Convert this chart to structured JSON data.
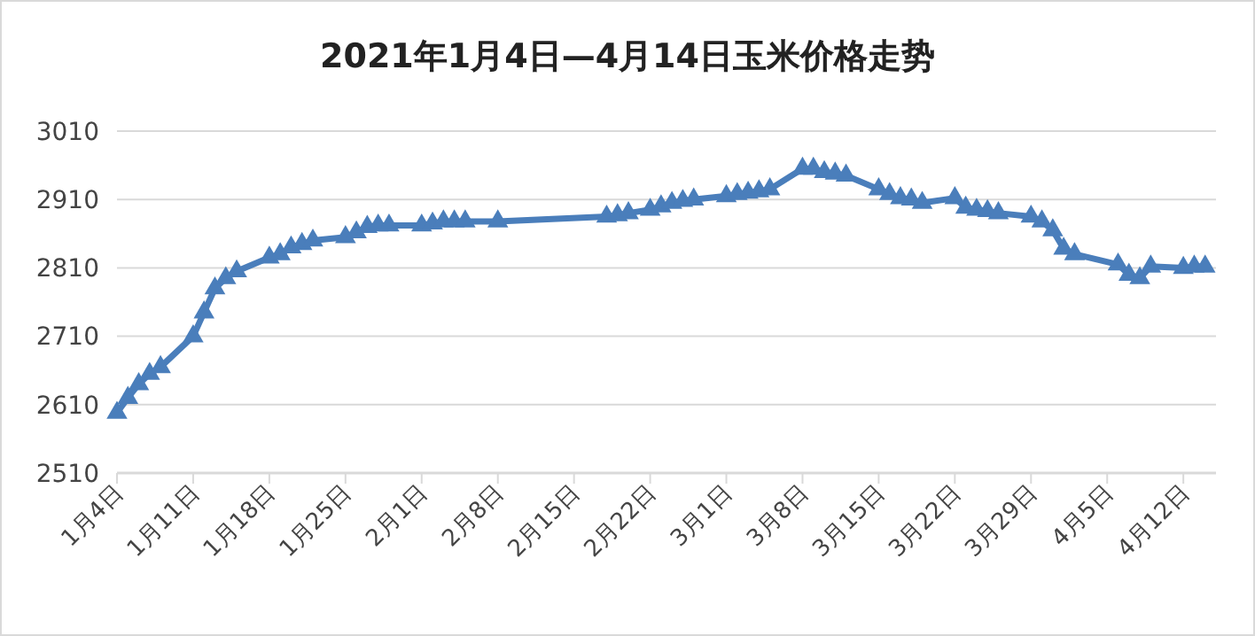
{
  "chart_data": {
    "type": "line",
    "title": "2021年1月4日—4月14日玉米价格走势",
    "marker": "triangle",
    "grid": "y",
    "line_style": "solid",
    "xlim": [
      "2021-01-04",
      "2021-04-15"
    ],
    "xticks": [
      {
        "value": "2021-01-04",
        "label": "1月4日"
      },
      {
        "value": "2021-01-11",
        "label": "1月11日"
      },
      {
        "value": "2021-01-18",
        "label": "1月18日"
      },
      {
        "value": "2021-01-25",
        "label": "1月25日"
      },
      {
        "value": "2021-02-01",
        "label": "2月1日"
      },
      {
        "value": "2021-02-08",
        "label": "2月8日"
      },
      {
        "value": "2021-02-15",
        "label": "2月15日"
      },
      {
        "value": "2021-02-22",
        "label": "2月22日"
      },
      {
        "value": "2021-03-01",
        "label": "3月1日"
      },
      {
        "value": "2021-03-08",
        "label": "3月8日"
      },
      {
        "value": "2021-03-15",
        "label": "3月15日"
      },
      {
        "value": "2021-03-22",
        "label": "3月22日"
      },
      {
        "value": "2021-03-29",
        "label": "3月29日"
      },
      {
        "value": "2021-04-05",
        "label": "4月5日"
      },
      {
        "value": "2021-04-12",
        "label": "4月12日"
      }
    ],
    "ylim": [
      2510,
      3010
    ],
    "yticks": [
      2510,
      2610,
      2710,
      2810,
      2910,
      3010
    ],
    "x": [
      "2021-01-04",
      "2021-01-05",
      "2021-01-06",
      "2021-01-07",
      "2021-01-08",
      "2021-01-11",
      "2021-01-12",
      "2021-01-13",
      "2021-01-14",
      "2021-01-15",
      "2021-01-18",
      "2021-01-19",
      "2021-01-20",
      "2021-01-21",
      "2021-01-22",
      "2021-01-25",
      "2021-01-26",
      "2021-01-27",
      "2021-01-28",
      "2021-01-29",
      "2021-02-01",
      "2021-02-02",
      "2021-02-03",
      "2021-02-04",
      "2021-02-05",
      "2021-02-08",
      "2021-02-18",
      "2021-02-19",
      "2021-02-20",
      "2021-02-22",
      "2021-02-23",
      "2021-02-24",
      "2021-02-25",
      "2021-02-26",
      "2021-03-01",
      "2021-03-02",
      "2021-03-03",
      "2021-03-04",
      "2021-03-05",
      "2021-03-08",
      "2021-03-09",
      "2021-03-10",
      "2021-03-11",
      "2021-03-12",
      "2021-03-15",
      "2021-03-16",
      "2021-03-17",
      "2021-03-18",
      "2021-03-19",
      "2021-03-22",
      "2021-03-23",
      "2021-03-24",
      "2021-03-25",
      "2021-03-26",
      "2021-03-29",
      "2021-03-30",
      "2021-03-31",
      "2021-04-01",
      "2021-04-02",
      "2021-04-06",
      "2021-04-07",
      "2021-04-08",
      "2021-04-09",
      "2021-04-12",
      "2021-04-13",
      "2021-04-14"
    ],
    "series": [
      {
        "color": "#4a7ebb",
        "values": [
          2598,
          2620,
          2640,
          2655,
          2665,
          2710,
          2745,
          2780,
          2795,
          2805,
          2825,
          2830,
          2840,
          2845,
          2850,
          2855,
          2862,
          2870,
          2872,
          2872,
          2872,
          2875,
          2878,
          2878,
          2878,
          2878,
          2885,
          2887,
          2890,
          2895,
          2900,
          2905,
          2908,
          2910,
          2915,
          2918,
          2920,
          2922,
          2925,
          2955,
          2955,
          2950,
          2948,
          2945,
          2925,
          2918,
          2912,
          2910,
          2905,
          2912,
          2898,
          2895,
          2893,
          2890,
          2885,
          2878,
          2865,
          2838,
          2830,
          2815,
          2800,
          2795,
          2812,
          2810,
          2812,
          2812
        ]
      }
    ]
  }
}
